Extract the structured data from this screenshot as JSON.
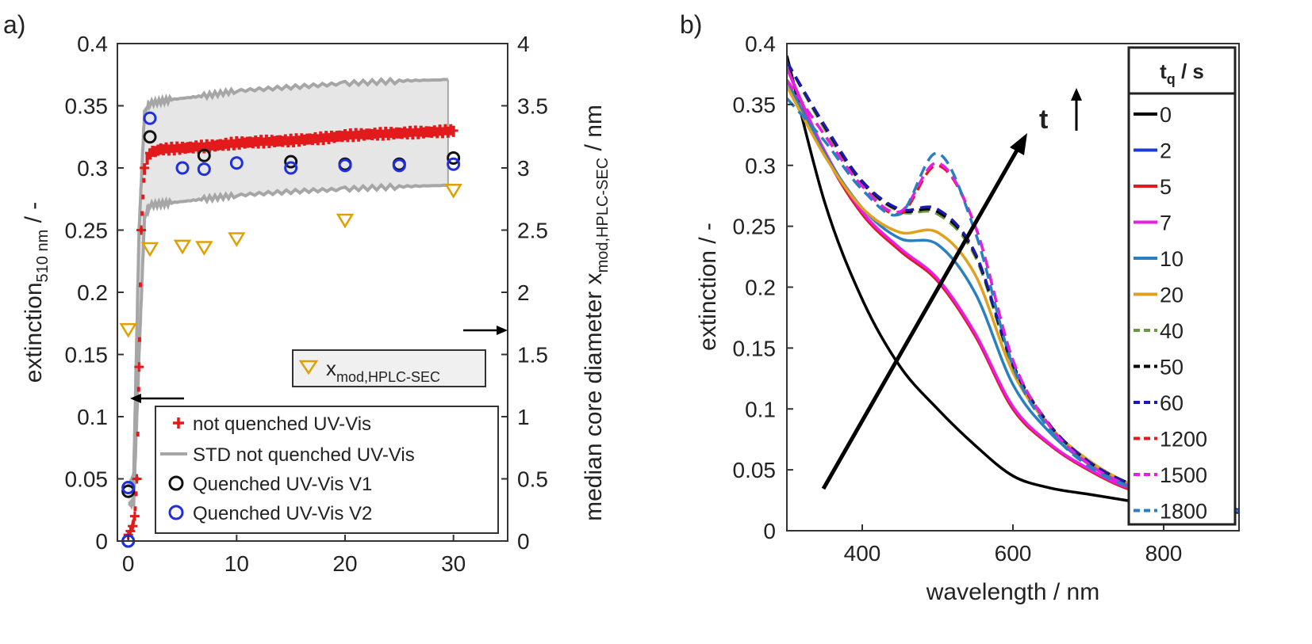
{
  "panel_labels": {
    "a": "a)",
    "b": "b)"
  },
  "colors": {
    "red": "#e31a1c",
    "std": "#a6a6a6",
    "std_fill": "#e6e6e6",
    "v1": "#111111",
    "v2": "#1f2fe0",
    "xmod": "#e0a000"
  },
  "chart_data": [
    {
      "panel": "a",
      "type": "scatter",
      "ylabel_main": "extinction",
      "ylabel_sub": "510 nm",
      "ylabel_tail": " / -",
      "y2label_main": "median core diameter x",
      "y2label_sub": "mod,HPLC-SEC",
      "y2label_tail": " / nm",
      "xlim": [
        -1,
        35
      ],
      "ylim": [
        0,
        0.4
      ],
      "y2lim": [
        0,
        4
      ],
      "xticks": [
        "0",
        "10",
        "20",
        "30"
      ],
      "yticks": [
        "0",
        "0.05",
        "0.1",
        "0.15",
        "0.2",
        "0.25",
        "0.3",
        "0.35",
        "0.4"
      ],
      "y2ticks": [
        "0",
        "0.5",
        "1",
        "1.5",
        "2",
        "2.5",
        "3",
        "3.5",
        "4"
      ],
      "legend_xmod": {
        "main": "x",
        "sub": "mod,HPLC-SEC"
      },
      "legend_main": [
        "not quenched UV-Vis",
        "STD not quenched UV-Vis",
        "Quenched UV-Vis V1",
        "Quenched UV-Vis V2"
      ],
      "series": [
        {
          "name": "not quenched UV-Vis",
          "x": [
            0,
            0.2,
            0.4,
            0.6,
            0.8,
            1.0,
            1.2,
            1.5,
            2,
            3,
            5,
            8,
            10,
            12,
            15,
            18,
            20,
            22,
            25,
            28,
            30
          ],
          "y": [
            0.005,
            0.008,
            0.012,
            0.02,
            0.05,
            0.14,
            0.25,
            0.3,
            0.312,
            0.315,
            0.316,
            0.318,
            0.32,
            0.321,
            0.322,
            0.324,
            0.326,
            0.327,
            0.328,
            0.329,
            0.33
          ]
        },
        {
          "name": "STD not quenched UV-Vis",
          "x": [
            0,
            0.5,
            1.0,
            1.5,
            2,
            4,
            7,
            10,
            15,
            20,
            25,
            29.5
          ],
          "upper": [
            0.045,
            0.05,
            0.25,
            0.345,
            0.352,
            0.355,
            0.358,
            0.362,
            0.365,
            0.368,
            0.37,
            0.371
          ],
          "lower": [
            0.03,
            0.03,
            0.15,
            0.26,
            0.27,
            0.272,
            0.275,
            0.278,
            0.281,
            0.283,
            0.285,
            0.286
          ]
        },
        {
          "name": "Quenched UV-Vis V1",
          "x": [
            0,
            0,
            2,
            7,
            15,
            20,
            25,
            30
          ],
          "y": [
            0,
            0.04,
            0.325,
            0.31,
            0.305,
            0.303,
            0.303,
            0.308
          ]
        },
        {
          "name": "Quenched UV-Vis V2",
          "x": [
            0,
            0,
            2,
            5,
            7,
            10,
            15,
            20,
            25,
            30
          ],
          "y": [
            0,
            0.043,
            0.34,
            0.3,
            0.299,
            0.304,
            0.3,
            0.302,
            0.302,
            0.303
          ]
        },
        {
          "name": "x_mod,HPLC-SEC",
          "axis": "right",
          "x": [
            0,
            2,
            5,
            7,
            10,
            20,
            30
          ],
          "y": [
            1.7,
            2.35,
            2.37,
            2.36,
            2.43,
            2.58,
            2.82
          ]
        }
      ]
    },
    {
      "panel": "b",
      "type": "line",
      "xlabel": "wavelength / nm",
      "ylabel": "extinction / -",
      "xlim": [
        300,
        900
      ],
      "ylim": [
        0,
        0.4
      ],
      "xticks": [
        "400",
        "600",
        "800"
      ],
      "yticks": [
        "0",
        "0.05",
        "0.1",
        "0.15",
        "0.2",
        "0.25",
        "0.3",
        "0.35",
        "0.4"
      ],
      "legend_title_main": "t",
      "legend_title_sub": "q",
      "legend_title_tail": " / s",
      "arrow_label": "t",
      "x": [
        300,
        350,
        400,
        450,
        500,
        550,
        600,
        650,
        700,
        750,
        800,
        900
      ],
      "series": [
        {
          "name": "0",
          "color": "#000000",
          "dash": false,
          "y": [
            0.39,
            0.27,
            0.19,
            0.135,
            0.1,
            0.07,
            0.045,
            0.035,
            0.03,
            0.025,
            0.02,
            0.015
          ]
        },
        {
          "name": "2",
          "color": "#1a3bd6",
          "dash": false,
          "y": [
            0.38,
            0.31,
            0.26,
            0.23,
            0.205,
            0.16,
            0.1,
            0.07,
            0.05,
            0.035,
            0.028,
            0.016
          ]
        },
        {
          "name": "5",
          "color": "#e31a1c",
          "dash": false,
          "y": [
            0.38,
            0.31,
            0.26,
            0.23,
            0.205,
            0.16,
            0.1,
            0.07,
            0.05,
            0.035,
            0.028,
            0.016
          ]
        },
        {
          "name": "7",
          "color": "#e61ee6",
          "dash": false,
          "y": [
            0.38,
            0.312,
            0.262,
            0.232,
            0.207,
            0.162,
            0.102,
            0.071,
            0.051,
            0.036,
            0.028,
            0.016
          ]
        },
        {
          "name": "10",
          "color": "#2a7fc0",
          "dash": false,
          "y": [
            0.37,
            0.31,
            0.265,
            0.24,
            0.235,
            0.195,
            0.12,
            0.08,
            0.055,
            0.038,
            0.029,
            0.016
          ]
        },
        {
          "name": "20",
          "color": "#e0a020",
          "dash": false,
          "y": [
            0.365,
            0.308,
            0.265,
            0.245,
            0.245,
            0.21,
            0.13,
            0.085,
            0.058,
            0.04,
            0.03,
            0.017
          ]
        },
        {
          "name": "40",
          "color": "#6a9a3a",
          "dash": true,
          "y": [
            0.385,
            0.33,
            0.285,
            0.262,
            0.26,
            0.225,
            0.135,
            0.085,
            0.057,
            0.04,
            0.03,
            0.017
          ]
        },
        {
          "name": "50",
          "color": "#000000",
          "dash": true,
          "y": [
            0.385,
            0.332,
            0.286,
            0.263,
            0.262,
            0.227,
            0.136,
            0.086,
            0.057,
            0.04,
            0.03,
            0.017
          ]
        },
        {
          "name": "60",
          "color": "#1a1ab0",
          "dash": true,
          "y": [
            0.385,
            0.333,
            0.287,
            0.264,
            0.264,
            0.228,
            0.137,
            0.086,
            0.057,
            0.04,
            0.03,
            0.017
          ]
        },
        {
          "name": "1200",
          "color": "#e31a1c",
          "dash": true,
          "y": [
            0.37,
            0.325,
            0.283,
            0.26,
            0.3,
            0.25,
            0.14,
            0.085,
            0.055,
            0.038,
            0.028,
            0.016
          ]
        },
        {
          "name": "1500",
          "color": "#e61ee6",
          "dash": true,
          "y": [
            0.37,
            0.325,
            0.283,
            0.262,
            0.302,
            0.25,
            0.14,
            0.085,
            0.055,
            0.038,
            0.028,
            0.016
          ]
        },
        {
          "name": "1800",
          "color": "#2a7fc0",
          "dash": true,
          "y": [
            0.355,
            0.32,
            0.28,
            0.26,
            0.31,
            0.245,
            0.135,
            0.082,
            0.053,
            0.037,
            0.028,
            0.016
          ]
        }
      ]
    }
  ]
}
